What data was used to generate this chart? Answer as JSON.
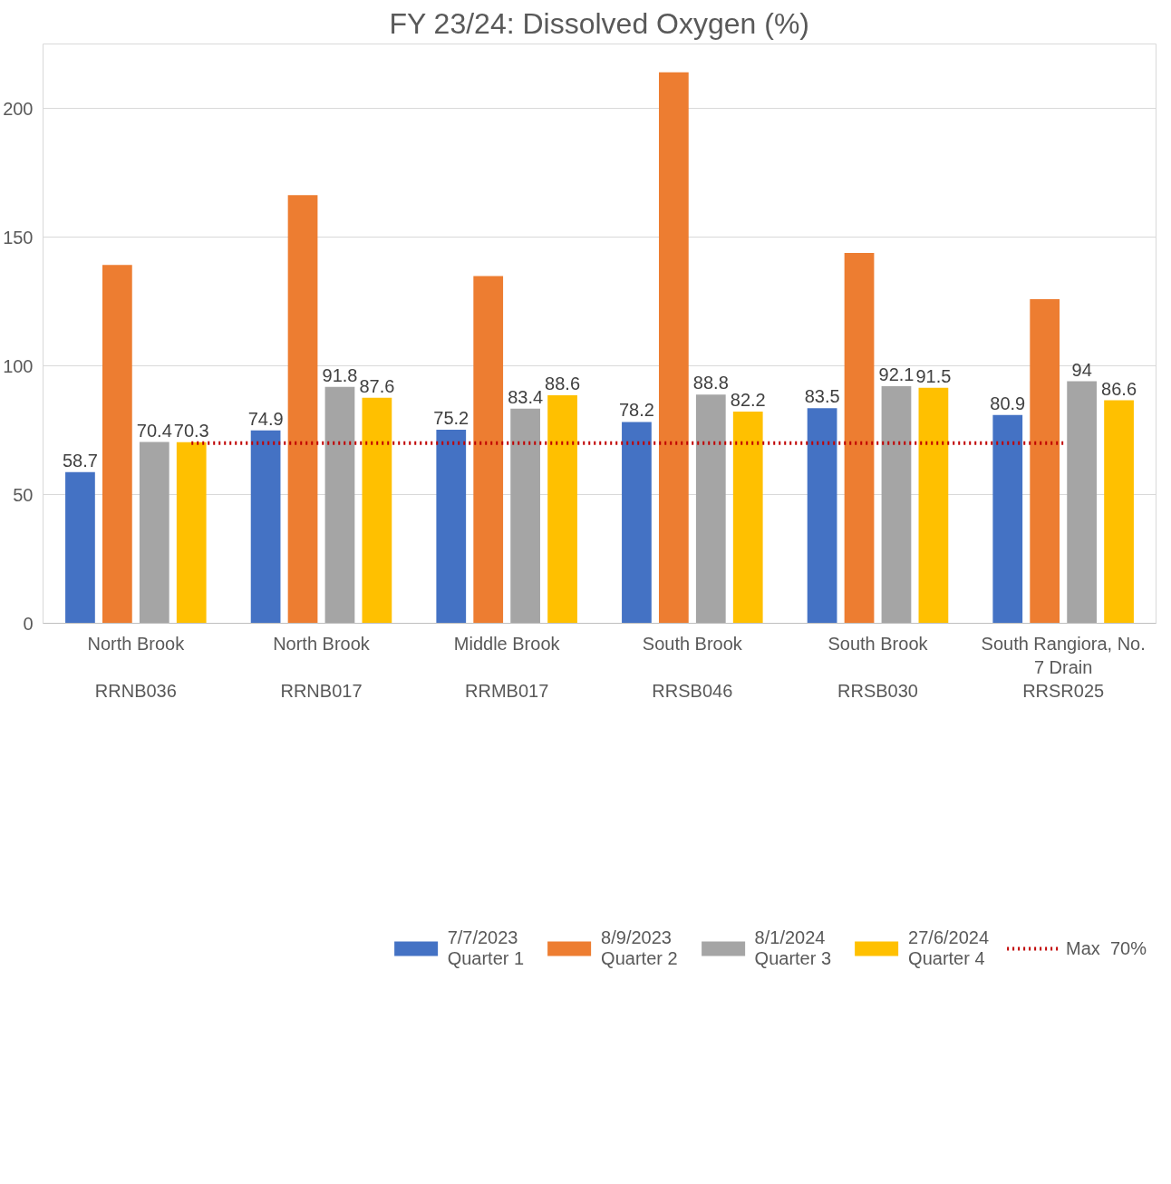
{
  "chart_data": {
    "type": "bar",
    "title": "FY 23/24: Dissolved Oxygen (%)",
    "categories": [
      "North Brook\n\nRRNB036",
      "North Brook\n\nRRNB017",
      "Middle Brook\n\nRRMB017",
      "South Brook\n\nRRSB046",
      "South Brook\n\nRRSB030",
      "South Rangiora, No.\n7 Drain\nRRSR025"
    ],
    "series": [
      {
        "name": "7/7/2023\nQuarter 1",
        "color": "#4472c4",
        "values": [
          58.7,
          74.9,
          75.2,
          78.2,
          83.5,
          80.9
        ],
        "value_labels": [
          "58.7",
          "74.9",
          "75.2",
          "78.2",
          "83.5",
          "80.9"
        ]
      },
      {
        "name": "8/9/2023\nQuarter 2",
        "color": "#ed7d31",
        "values": [
          139.2,
          166.3,
          134.9,
          214.0,
          143.8,
          125.9
        ]
      },
      {
        "name": "8/1/2024\nQuarter 3",
        "color": "#a5a5a5",
        "values": [
          70.4,
          91.8,
          83.4,
          88.8,
          92.1,
          94
        ],
        "value_labels": [
          "70.4",
          "91.8",
          "83.4",
          "88.8",
          "92.1",
          "94"
        ]
      },
      {
        "name": "27/6/2024\nQuarter 4",
        "color": "#ffc000",
        "values": [
          70.3,
          87.6,
          88.6,
          82.2,
          91.5,
          86.6
        ],
        "value_labels": [
          "70.3",
          "87.6",
          "88.6",
          "82.2",
          "91.5",
          "86.6"
        ]
      }
    ],
    "ref_lines": [
      {
        "axis": "y",
        "value": 70,
        "label": "Max  70%",
        "color": "#c00000",
        "line_style": "dotted"
      }
    ],
    "ylim": [
      0,
      225
    ],
    "yticks": [
      0,
      50,
      100,
      150,
      200
    ],
    "grid": "y",
    "legend": "bottom"
  }
}
